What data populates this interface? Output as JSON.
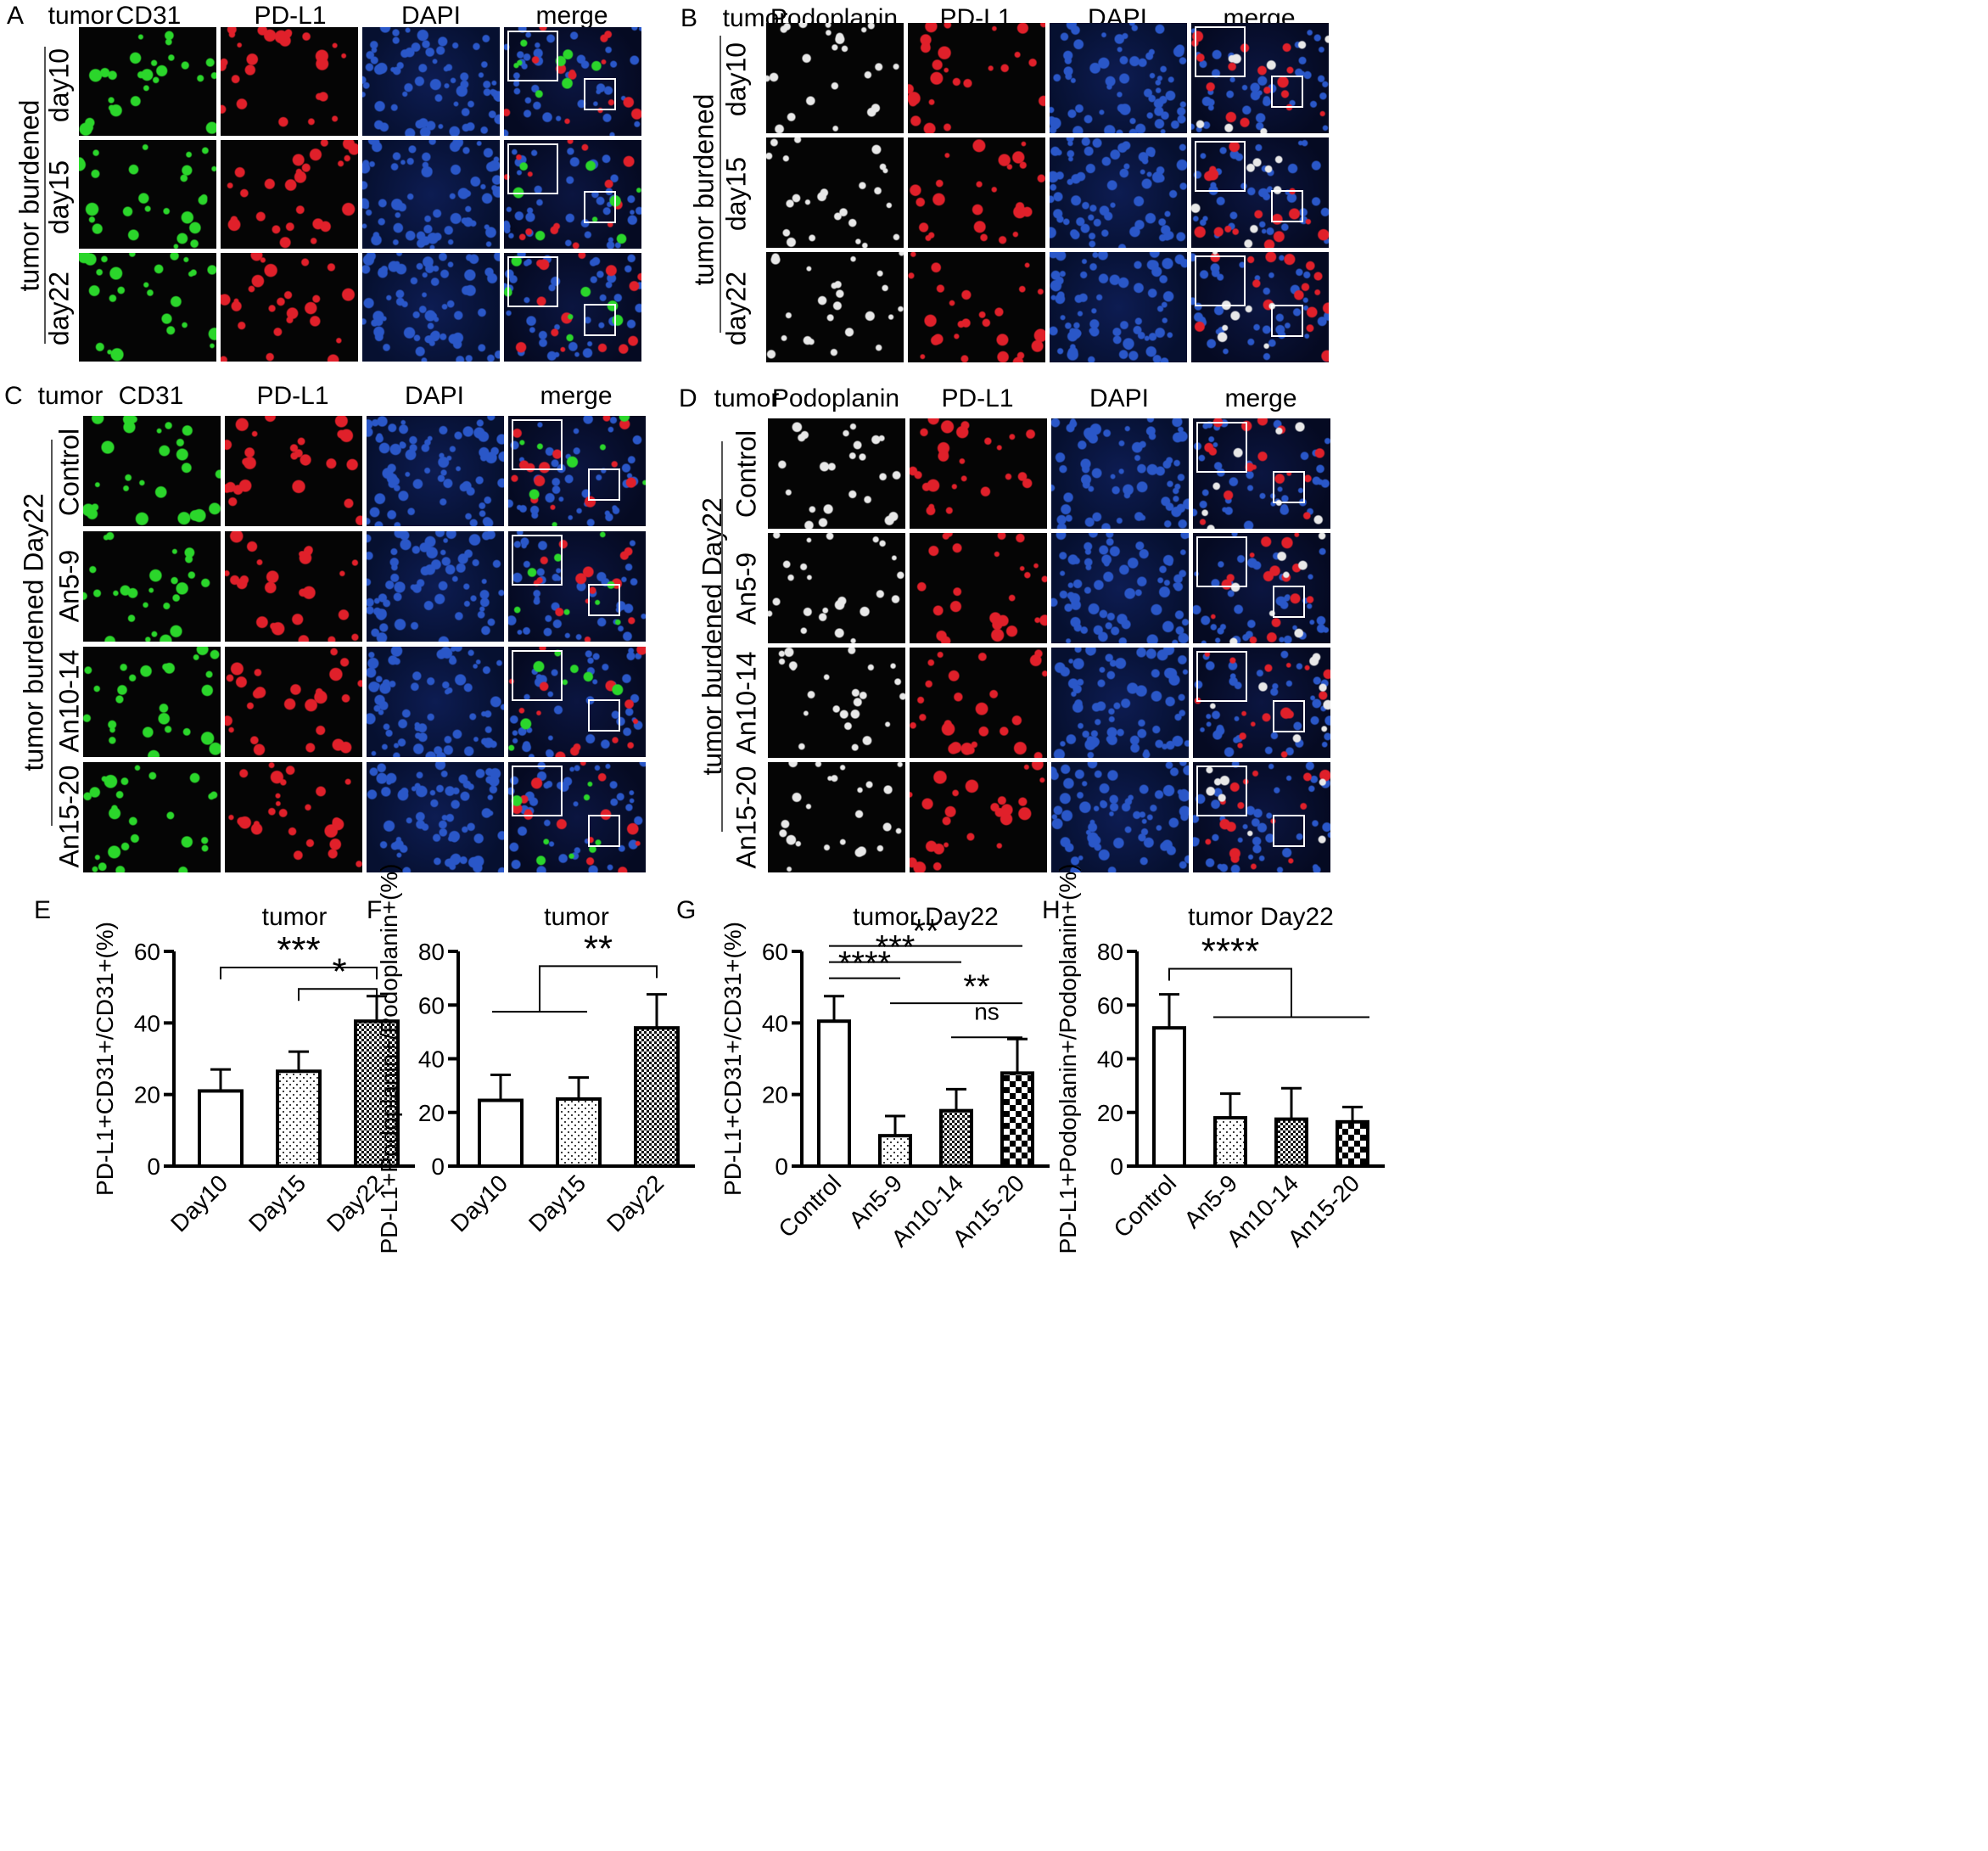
{
  "panelA": {
    "letter": "A",
    "headers": [
      "tumor",
      "CD31",
      "PD-L1",
      "DAPI",
      "merge"
    ],
    "group": "tumor burdened",
    "rows": [
      "day10",
      "day15",
      "day22"
    ]
  },
  "panelB": {
    "letter": "B",
    "headers": [
      "tumor",
      "Podoplanin",
      "PD-L1",
      "DAPI",
      "merge"
    ],
    "group": "tumor burdened",
    "rows": [
      "day10",
      "day15",
      "day22"
    ]
  },
  "panelC": {
    "letter": "C",
    "headers": [
      "tumor",
      "CD31",
      "PD-L1",
      "DAPI",
      "merge"
    ],
    "group": "tumor burdened Day22",
    "rows": [
      "Control",
      "An5-9",
      "An10-14",
      "An15-20"
    ]
  },
  "panelD": {
    "letter": "D",
    "headers": [
      "tumor",
      "Podoplanin",
      "PD-L1",
      "DAPI",
      "merge"
    ],
    "group": "tumor burdened Day22",
    "rows": [
      "Control",
      "An5-9",
      "An10-14",
      "An15-20"
    ]
  },
  "colors": {
    "green": "#2bd62b",
    "red": "#e0202a",
    "blue": "#2a57c8",
    "white": "#e8e8e8",
    "tile_bg": "#050505"
  },
  "chart_data": [
    {
      "letter": "E",
      "type": "bar",
      "title": "tumor",
      "ylabel": "PD-L1+CD31+/CD31+(%)",
      "xlabel": "",
      "ylim": [
        0,
        60
      ],
      "yticks": [
        "0",
        "20",
        "40",
        "60"
      ],
      "categories": [
        "Day10",
        "Day15",
        "Day22"
      ],
      "values": [
        21,
        26.5,
        40.5
      ],
      "errors": [
        6,
        5.5,
        7
      ],
      "fills": [
        "white",
        "dots",
        "checker"
      ],
      "significance": [
        "***",
        "*"
      ]
    },
    {
      "letter": "F",
      "type": "bar",
      "title": "tumor",
      "ylabel": "PD-L1+Podoplanin+/Podoplanin+(%)",
      "xlabel": "",
      "ylim": [
        0,
        80
      ],
      "yticks": [
        "0",
        "20",
        "40",
        "60",
        "80"
      ],
      "categories": [
        "Day10",
        "Day15",
        "Day22"
      ],
      "values": [
        24.5,
        25,
        51.5
      ],
      "errors": [
        9.5,
        8,
        12.5
      ],
      "fills": [
        "white",
        "dots",
        "checker"
      ],
      "significance": [
        "**"
      ]
    },
    {
      "letter": "G",
      "type": "bar",
      "title": "tumor Day22",
      "ylabel": "PD-L1+CD31+/CD31+(%)",
      "xlabel": "",
      "ylim": [
        0,
        60
      ],
      "yticks": [
        "0",
        "20",
        "40",
        "60"
      ],
      "categories": [
        "Control",
        "An5-9",
        "An10-14",
        "An15-20"
      ],
      "values": [
        40.5,
        8.5,
        15.5,
        26
      ],
      "errors": [
        7,
        5.5,
        6,
        9.5
      ],
      "fills": [
        "white",
        "dots",
        "checker",
        "bigchecker"
      ],
      "significance": [
        "**",
        "***",
        "****",
        "**",
        "ns"
      ]
    },
    {
      "letter": "H",
      "type": "bar",
      "title": "tumor Day22",
      "ylabel": "PD-L1+Podoplanin+/Podoplanin+(%)",
      "xlabel": "",
      "ylim": [
        0,
        80
      ],
      "yticks": [
        "0",
        "20",
        "40",
        "60",
        "80"
      ],
      "categories": [
        "Control",
        "An5-9",
        "An10-14",
        "An15-20"
      ],
      "values": [
        51.5,
        18,
        17.5,
        16.5
      ],
      "errors": [
        12.5,
        9,
        11.5,
        5.5
      ],
      "fills": [
        "white",
        "dots",
        "checker",
        "bigchecker"
      ],
      "significance": [
        "****"
      ]
    }
  ]
}
